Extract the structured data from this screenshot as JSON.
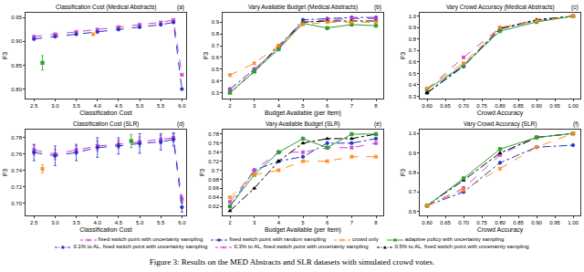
{
  "caption": "Figure 3: Results on the MED Abstracts and SLR datasets with simulated crowd votes.",
  "chart_data": [
    {
      "type": "line",
      "title": "Classification Cost (Medical Abstracts)",
      "annotations": [
        "(a)"
      ],
      "x_label": "Classification Cost",
      "y_label": "F3",
      "grid": false,
      "xlim": [
        2.3,
        6.1
      ],
      "xticks": [
        2.5,
        {
          "value": 3,
          "label": "3.0"
        },
        3.5,
        {
          "value": 4,
          "label": "4.0"
        },
        4.5,
        {
          "value": 5,
          "label": "5.0"
        },
        5.5,
        {
          "value": 6,
          "label": "6.0"
        }
      ],
      "ylim": [
        0.78,
        0.96
      ],
      "yticks": [
        {
          "value": 0.8,
          "label": "0.80"
        },
        0.85,
        {
          "value": 0.9,
          "label": "0.90"
        },
        0.95
      ],
      "series": [
        {
          "name": "fixed switch point with uncertainty sampling",
          "color": "#cc44cc",
          "line_style": "dash",
          "marker": "x",
          "x": [
            2.5,
            3,
            3.5,
            4,
            4.5,
            5,
            5.5,
            5.8,
            6
          ],
          "values": [
            0.91,
            0.915,
            0.92,
            0.925,
            0.93,
            0.935,
            0.94,
            0.945,
            0.83
          ]
        },
        {
          "name": "fixed switch point with random sampling",
          "color": "#2233cc",
          "line_style": "dash",
          "marker": "circle",
          "x": [
            2.5,
            3,
            3.5,
            4,
            4.5,
            5,
            5.5,
            5.8,
            6
          ],
          "values": [
            0.905,
            0.91,
            0.915,
            0.92,
            0.925,
            0.93,
            0.935,
            0.94,
            0.8
          ]
        },
        {
          "name": "crowd only",
          "color": "#ff8c1a",
          "type": "scatter",
          "marker": "x",
          "line_style": "dash",
          "x": [
            3.9
          ],
          "values": [
            0.915
          ]
        },
        {
          "name": "adaptive policy with uncertainty sampling",
          "color": "#2ca02c",
          "type": "scatter",
          "marker": "square",
          "line_style": "solid",
          "x": [
            2.7
          ],
          "values": [
            0.855
          ],
          "error": [
            0.015
          ]
        }
      ]
    },
    {
      "type": "line",
      "title": "Vary Available Budget (Medical Abstracts)",
      "annotations": [
        "(b)"
      ],
      "x_label": "Budget Available (per item)",
      "y_label": "F3",
      "grid": false,
      "x": [
        2,
        3,
        4,
        5,
        6,
        7,
        8
      ],
      "xlim": [
        1.7,
        8.3
      ],
      "xticks": [
        2,
        3,
        4,
        5,
        6,
        7,
        8
      ],
      "ylim": [
        0.25,
        0.98
      ],
      "yticks": [
        0.3,
        0.4,
        0.5,
        0.6,
        0.7,
        0.8,
        0.9
      ],
      "series": [
        {
          "name": "0.1% to AL, fixed switch point with uncertainty sampling",
          "color": "#2233cc",
          "line_style": "dashdot",
          "marker": "circle",
          "values": [
            0.33,
            0.5,
            0.68,
            0.92,
            0.93,
            0.94,
            0.94
          ]
        },
        {
          "name": "0.3% to AL, fixed switch point with uncertainty sampling",
          "color": "#cc44cc",
          "line_style": "dash",
          "marker": "x",
          "values": [
            0.33,
            0.5,
            0.68,
            0.9,
            0.92,
            0.93,
            0.93
          ]
        },
        {
          "name": "0.5% to AL, fixed switch point with uncertainty sampling",
          "color": "#000000",
          "line_style": "dashdot",
          "marker": "triangle-up",
          "values": [
            0.3,
            0.48,
            0.7,
            0.9,
            0.91,
            0.91,
            0.91
          ]
        },
        {
          "name": "adaptive policy with uncertainty sampling",
          "color": "#2ca02c",
          "line_style": "solid",
          "marker": "square",
          "values": [
            0.3,
            0.48,
            0.67,
            0.89,
            0.85,
            0.88,
            0.87
          ]
        },
        {
          "name": "crowd only",
          "color": "#ff8c1a",
          "line_style": "dash",
          "marker": "x",
          "values": [
            0.45,
            0.55,
            0.7,
            0.88,
            0.9,
            0.9,
            0.9
          ]
        }
      ]
    },
    {
      "type": "line",
      "title": "Vary Crowd Accuracy (Medical Abstracts)",
      "annotations": [
        "(c)"
      ],
      "x_label": "Crowd Accuracy",
      "y_label": "F3",
      "grid": false,
      "x": [
        0.6,
        0.7,
        0.8,
        0.9,
        1.0
      ],
      "xlim": [
        0.58,
        1.02
      ],
      "xticks": [
        {
          "value": 0.6,
          "label": "0.60"
        },
        0.65,
        {
          "value": 0.7,
          "label": "0.70"
        },
        0.75,
        {
          "value": 0.8,
          "label": "0.80"
        },
        0.85,
        {
          "value": 0.9,
          "label": "0.90"
        },
        0.95,
        {
          "value": 1,
          "label": "1.00"
        }
      ],
      "ylim": [
        0.28,
        1.03
      ],
      "yticks": [
        0.3,
        0.4,
        0.5,
        0.6,
        0.7,
        0.8,
        0.9,
        {
          "value": 1,
          "label": "1.0"
        }
      ],
      "series": [
        {
          "name": "0.1% to AL, fixed switch point with uncertainty sampling",
          "color": "#2233cc",
          "line_style": "dashdot",
          "marker": "circle",
          "values": [
            0.33,
            0.56,
            0.89,
            0.96,
            1.0
          ]
        },
        {
          "name": "0.3% to AL, fixed switch point with uncertainty sampling",
          "color": "#cc44cc",
          "line_style": "dash",
          "marker": "x",
          "values": [
            0.36,
            0.64,
            0.9,
            0.96,
            1.0
          ]
        },
        {
          "name": "0.5% to AL, fixed switch point with uncertainty sampling",
          "color": "#000000",
          "line_style": "dashdot",
          "marker": "triangle-up",
          "values": [
            0.33,
            0.57,
            0.89,
            0.97,
            1.0
          ]
        },
        {
          "name": "adaptive policy with uncertainty sampling",
          "color": "#2ca02c",
          "line_style": "solid",
          "marker": "square",
          "values": [
            0.36,
            0.57,
            0.87,
            0.95,
            1.0
          ]
        },
        {
          "name": "crowd only",
          "color": "#ff8c1a",
          "line_style": "dash",
          "marker": "x",
          "values": [
            0.37,
            0.59,
            0.9,
            0.96,
            1.0
          ]
        }
      ]
    },
    {
      "type": "line",
      "title": "Classification Cost (SLR)",
      "annotations": [
        "(d)"
      ],
      "x_label": "Classification Cost",
      "y_label": "F3",
      "grid": false,
      "xlim": [
        2.3,
        6.1
      ],
      "xticks": [
        2.5,
        {
          "value": 3,
          "label": "3.0"
        },
        3.5,
        {
          "value": 4,
          "label": "4.0"
        },
        4.5,
        {
          "value": 5,
          "label": "5.0"
        },
        5.5,
        {
          "value": 6,
          "label": "6.0"
        }
      ],
      "ylim": [
        0.685,
        0.79
      ],
      "yticks": [
        {
          "value": 0.7,
          "label": "0.70"
        },
        0.72,
        0.74,
        0.76,
        0.78
      ],
      "series": [
        {
          "name": "fixed switch point with uncertainty sampling",
          "color": "#cc44cc",
          "line_style": "dash",
          "marker": "x",
          "x": [
            2.5,
            3,
            3.5,
            4,
            4.5,
            5,
            5.5,
            5.8,
            6
          ],
          "values": [
            0.765,
            0.76,
            0.765,
            0.77,
            0.772,
            0.775,
            0.778,
            0.78,
            0.705
          ],
          "error": [
            0.006,
            0.006,
            0.005,
            0.006,
            0.005,
            0.006,
            0.005,
            0.005,
            0.004
          ]
        },
        {
          "name": "fixed switch point with random sampling",
          "color": "#2233cc",
          "line_style": "dash",
          "marker": "circle",
          "x": [
            2.5,
            3,
            3.5,
            4,
            4.5,
            5,
            5.5,
            5.8,
            6
          ],
          "values": [
            0.762,
            0.758,
            0.762,
            0.768,
            0.77,
            0.773,
            0.775,
            0.778,
            0.695
          ],
          "error": [
            0.01,
            0.012,
            0.01,
            0.012,
            0.01,
            0.012,
            0.01,
            0.008,
            0.006
          ]
        },
        {
          "name": "crowd only",
          "color": "#ff8c1a",
          "type": "scatter",
          "marker": "x",
          "line_style": "dash",
          "x": [
            2.7
          ],
          "values": [
            0.742
          ],
          "error": [
            0.005
          ]
        },
        {
          "name": "adaptive policy with uncertainty sampling",
          "color": "#2ca02c",
          "type": "scatter",
          "marker": "square",
          "line_style": "solid",
          "x": [
            4.8
          ],
          "values": [
            0.776
          ],
          "error": [
            0.008
          ]
        }
      ]
    },
    {
      "type": "line",
      "title": "Vary Available Budget (SLR)",
      "annotations": [
        "(e)"
      ],
      "x_label": "Budget Available (per item)",
      "y_label": "F3",
      "grid": false,
      "x": [
        2,
        3,
        4,
        5,
        6,
        7,
        8
      ],
      "xlim": [
        1.7,
        8.3
      ],
      "xticks": [
        2,
        3,
        4,
        5,
        6,
        7,
        8
      ],
      "ylim": [
        0.6,
        0.79
      ],
      "yticks": [
        0.62,
        0.64,
        0.66,
        0.68,
        0.7,
        0.72,
        0.74,
        0.76,
        0.78
      ],
      "series": [
        {
          "name": "0.1% to AL, fixed switch point with uncertainty sampling",
          "color": "#2233cc",
          "line_style": "dashdot",
          "marker": "circle",
          "values": [
            0.62,
            0.7,
            0.72,
            0.73,
            0.76,
            0.76,
            0.77
          ]
        },
        {
          "name": "0.3% to AL, fixed switch point with uncertainty sampling",
          "color": "#cc44cc",
          "line_style": "dash",
          "marker": "x",
          "values": [
            0.63,
            0.7,
            0.74,
            0.74,
            0.75,
            0.75,
            0.76
          ]
        },
        {
          "name": "0.5% to AL, fixed switch point with uncertainty sampling",
          "color": "#000000",
          "line_style": "dashdot",
          "marker": "triangle-up",
          "values": [
            0.61,
            0.66,
            0.72,
            0.76,
            0.77,
            0.77,
            0.78
          ]
        },
        {
          "name": "adaptive policy with uncertainty sampling",
          "color": "#2ca02c",
          "line_style": "solid",
          "marker": "square",
          "values": [
            0.62,
            0.69,
            0.74,
            0.77,
            0.75,
            0.78,
            0.78
          ]
        },
        {
          "name": "crowd only",
          "color": "#ff8c1a",
          "line_style": "dash",
          "marker": "x",
          "values": [
            0.64,
            0.69,
            0.7,
            0.72,
            0.72,
            0.73,
            0.73
          ]
        }
      ]
    },
    {
      "type": "line",
      "title": "Vary Crowd Accuracy (SLR)",
      "annotations": [
        "(f)"
      ],
      "x_label": "Crowd Accuracy",
      "y_label": "F3",
      "grid": false,
      "x": [
        0.6,
        0.7,
        0.8,
        0.9,
        1.0
      ],
      "xlim": [
        0.58,
        1.02
      ],
      "xticks": [
        {
          "value": 0.6,
          "label": "0.60"
        },
        0.65,
        {
          "value": 0.7,
          "label": "0.70"
        },
        0.75,
        {
          "value": 0.8,
          "label": "0.80"
        },
        0.85,
        {
          "value": 0.9,
          "label": "0.90"
        },
        0.95,
        {
          "value": 1,
          "label": "1.00"
        }
      ],
      "ylim": [
        0.58,
        1.02
      ],
      "yticks": [
        0.6,
        0.7,
        0.8,
        0.9,
        {
          "value": 1,
          "label": "1.0"
        }
      ],
      "series": [
        {
          "name": "0.1% to AL, fixed switch point with uncertainty sampling",
          "color": "#2233cc",
          "line_style": "dashdot",
          "marker": "circle",
          "values": [
            0.63,
            0.7,
            0.85,
            0.93,
            0.94
          ]
        },
        {
          "name": "0.3% to AL, fixed switch point with uncertainty sampling",
          "color": "#cc44cc",
          "line_style": "dash",
          "marker": "x",
          "values": [
            0.63,
            0.72,
            0.89,
            0.98,
            1.0
          ]
        },
        {
          "name": "0.5% to AL, fixed switch point with uncertainty sampling",
          "color": "#000000",
          "line_style": "dashdot",
          "marker": "triangle-up",
          "values": [
            0.63,
            0.76,
            0.9,
            0.98,
            1.0
          ]
        },
        {
          "name": "adaptive policy with uncertainty sampling",
          "color": "#2ca02c",
          "line_style": "solid",
          "marker": "square",
          "values": [
            0.63,
            0.77,
            0.92,
            0.98,
            1.0
          ]
        },
        {
          "name": "crowd only",
          "color": "#ff8c1a",
          "line_style": "dash",
          "marker": "x",
          "values": [
            0.63,
            0.71,
            0.82,
            0.93,
            1.0
          ]
        }
      ]
    }
  ]
}
